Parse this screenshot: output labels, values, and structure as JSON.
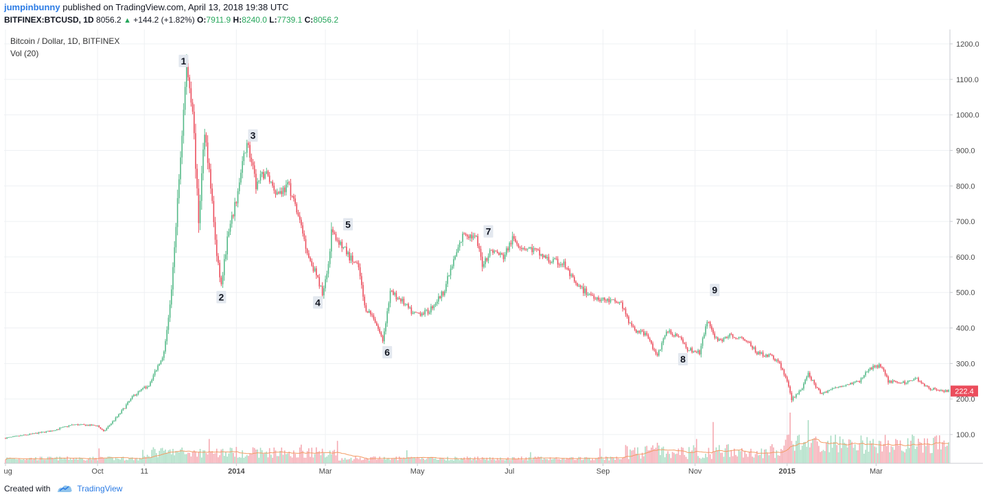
{
  "header": {
    "author": "jumpinbunny",
    "published_text": "published on TradingView.com, April 13, 2018 19:38 UTC",
    "symbol": "BITFINEX:BTCUSD, 1D",
    "last": "8056.2",
    "change": "+144.2 (+1.82%)",
    "open_label": "O:",
    "open": "7911.9",
    "high_label": "H:",
    "high": "8240.0",
    "low_label": "L:",
    "low": "7739.1",
    "close_label": "C:",
    "close": "8056.2"
  },
  "legend": {
    "symbol_desc": "Bitcoin / Dollar, 1D, BITFINEX",
    "volume": "Vol (20)"
  },
  "footer": {
    "created_with": "Created with",
    "brand": "TradingView"
  },
  "colors": {
    "up": "#53b987",
    "down": "#eb4d5c",
    "vol_up": "#a8dcc2",
    "vol_down": "#f5a9b1",
    "ma": "#f39b63",
    "grid": "#eef0f3",
    "price_tag": "#eb4d5c"
  },
  "chart_data": {
    "type": "candlestick",
    "y_axis": {
      "min": 0,
      "max": 1200,
      "ticks": [
        100,
        200,
        300,
        400,
        500,
        600,
        700,
        800,
        900,
        1000,
        1100,
        1200
      ],
      "tick_labels": [
        "100.0",
        "200.0",
        "300.0",
        "400.0",
        "500.0",
        "600.0",
        "700.0",
        "800.0",
        "900.0",
        "1000.0",
        "1100.0",
        "1200.0"
      ]
    },
    "x_axis": {
      "labels": [
        "Aug",
        "Oct",
        "11",
        "2014",
        "Mar",
        "May",
        "Jul",
        "Sep",
        "Nov",
        "2015",
        "Mar"
      ],
      "label_days": [
        0,
        61,
        92,
        153,
        212,
        273,
        334,
        396,
        457,
        518,
        577
      ],
      "bold": [
        "2014",
        "2015"
      ],
      "total_days": 625
    },
    "last_price": "222.4",
    "price_path": [
      [
        0,
        90
      ],
      [
        30,
        110
      ],
      [
        45,
        128
      ],
      [
        61,
        125
      ],
      [
        65,
        108
      ],
      [
        75,
        155
      ],
      [
        85,
        210
      ],
      [
        95,
        240
      ],
      [
        105,
        330
      ],
      [
        110,
        500
      ],
      [
        115,
        820
      ],
      [
        120,
        1140
      ],
      [
        124,
        1020
      ],
      [
        128,
        700
      ],
      [
        132,
        960
      ],
      [
        136,
        800
      ],
      [
        140,
        600
      ],
      [
        143,
        520
      ],
      [
        147,
        650
      ],
      [
        153,
        760
      ],
      [
        160,
        930
      ],
      [
        166,
        800
      ],
      [
        172,
        840
      ],
      [
        180,
        780
      ],
      [
        188,
        800
      ],
      [
        195,
        700
      ],
      [
        201,
        600
      ],
      [
        205,
        560
      ],
      [
        210,
        500
      ],
      [
        214,
        580
      ],
      [
        216,
        670
      ],
      [
        220,
        650
      ],
      [
        228,
        600
      ],
      [
        234,
        570
      ],
      [
        238,
        460
      ],
      [
        244,
        430
      ],
      [
        250,
        365
      ],
      [
        255,
        500
      ],
      [
        262,
        480
      ],
      [
        270,
        440
      ],
      [
        280,
        445
      ],
      [
        290,
        500
      ],
      [
        298,
        600
      ],
      [
        304,
        670
      ],
      [
        312,
        650
      ],
      [
        316,
        580
      ],
      [
        322,
        620
      ],
      [
        330,
        600
      ],
      [
        336,
        650
      ],
      [
        342,
        630
      ],
      [
        350,
        620
      ],
      [
        360,
        590
      ],
      [
        370,
        580
      ],
      [
        378,
        520
      ],
      [
        385,
        500
      ],
      [
        395,
        480
      ],
      [
        408,
        470
      ],
      [
        415,
        400
      ],
      [
        425,
        380
      ],
      [
        432,
        320
      ],
      [
        438,
        390
      ],
      [
        445,
        380
      ],
      [
        452,
        340
      ],
      [
        460,
        330
      ],
      [
        465,
        420
      ],
      [
        472,
        360
      ],
      [
        480,
        380
      ],
      [
        490,
        370
      ],
      [
        498,
        330
      ],
      [
        508,
        320
      ],
      [
        513,
        300
      ],
      [
        518,
        250
      ],
      [
        521,
        200
      ],
      [
        528,
        230
      ],
      [
        532,
        270
      ],
      [
        540,
        215
      ],
      [
        555,
        240
      ],
      [
        566,
        250
      ],
      [
        572,
        285
      ],
      [
        580,
        295
      ],
      [
        585,
        250
      ],
      [
        596,
        245
      ],
      [
        603,
        260
      ],
      [
        612,
        230
      ],
      [
        625,
        222
      ]
    ],
    "volume_spikes": [
      [
        62,
        25
      ],
      [
        135,
        50
      ],
      [
        196,
        35
      ],
      [
        220,
        45
      ],
      [
        266,
        20
      ],
      [
        348,
        15
      ],
      [
        394,
        25
      ],
      [
        432,
        40
      ],
      [
        458,
        50
      ],
      [
        469,
        95
      ],
      [
        520,
        120
      ],
      [
        532,
        100
      ],
      [
        545,
        45
      ],
      [
        575,
        50
      ],
      [
        590,
        50
      ],
      [
        604,
        30
      ]
    ],
    "annotations": [
      {
        "label": "1",
        "day": 118,
        "price": 1150
      },
      {
        "label": "2",
        "day": 143,
        "price": 485
      },
      {
        "label": "3",
        "day": 164,
        "price": 940
      },
      {
        "label": "4",
        "day": 207,
        "price": 470
      },
      {
        "label": "5",
        "day": 227,
        "price": 690
      },
      {
        "label": "6",
        "day": 253,
        "price": 330
      },
      {
        "label": "7",
        "day": 320,
        "price": 670
      },
      {
        "label": "8",
        "day": 449,
        "price": 310
      },
      {
        "label": "9",
        "day": 470,
        "price": 505
      }
    ]
  }
}
